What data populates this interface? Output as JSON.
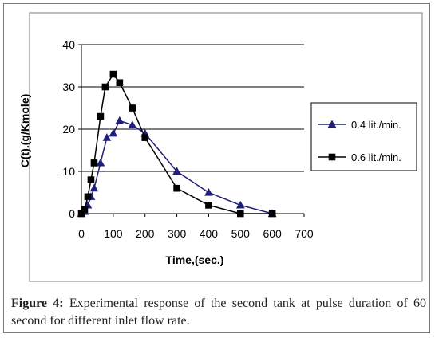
{
  "chart_data": {
    "type": "line",
    "title": "",
    "xlabel": "Time,(sec.)",
    "ylabel": "C(t).(g/Kmole)",
    "xlim": [
      0,
      700
    ],
    "ylim": [
      0,
      40
    ],
    "xticks": [
      "0",
      "100",
      "200",
      "300",
      "400",
      "500",
      "600",
      "700"
    ],
    "yticks": [
      "0",
      "10",
      "20",
      "30",
      "40"
    ],
    "grid": "horizontal",
    "legend_position": "right",
    "series": [
      {
        "name": "0.4 lit./min.",
        "marker": "triangle",
        "color": "#1f1f7a",
        "x": [
          0,
          10,
          20,
          30,
          40,
          60,
          80,
          100,
          120,
          160,
          200,
          300,
          400,
          500,
          600
        ],
        "y": [
          0,
          0.5,
          2,
          4,
          6,
          12,
          18,
          19,
          22,
          21,
          19,
          10,
          5,
          2,
          0
        ]
      },
      {
        "name": "0.6 lit./min.",
        "marker": "square",
        "color": "#000000",
        "x": [
          0,
          10,
          20,
          30,
          40,
          60,
          75,
          100,
          120,
          160,
          200,
          300,
          400,
          500,
          600
        ],
        "y": [
          0,
          1,
          4,
          8,
          12,
          23,
          30,
          33,
          31,
          25,
          18,
          6,
          2,
          0,
          0
        ]
      }
    ]
  },
  "caption": {
    "label": "Figure 4:",
    "text": " Experimental response of the second tank at pulse duration of 60 second for different inlet flow rate."
  }
}
